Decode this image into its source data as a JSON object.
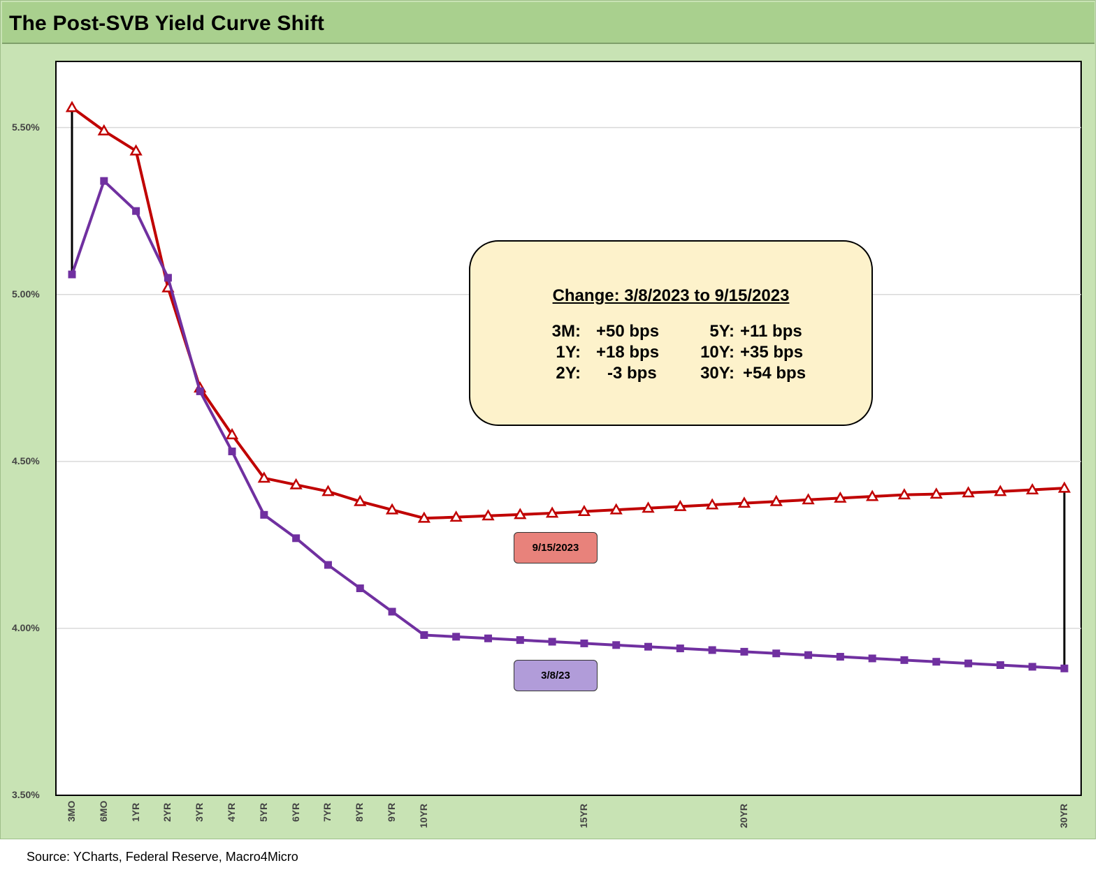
{
  "header": {
    "title": "The Post-SVB Yield Curve Shift"
  },
  "footer": {
    "source": "Source: YCharts, Federal Reserve, Macro4Micro"
  },
  "annotation": {
    "title": "Change: 3/8/2023 to 9/15/2023",
    "rows": [
      {
        "left_term": "3M:",
        "left_value": "+50 bps",
        "right_term": "5Y:",
        "right_value": "+11 bps"
      },
      {
        "left_term": "1Y:",
        "left_value": "+18 bps",
        "right_term": "10Y:",
        "right_value": "+35 bps"
      },
      {
        "left_term": "2Y:",
        "left_value": "-3 bps",
        "right_term": "30Y:",
        "right_value": "+54 bps"
      }
    ]
  },
  "colors": {
    "series_sep": "#c00000",
    "series_mar": "#7030a0",
    "label_sep_bg": "#e8827b",
    "label_mar_bg": "#b19cd9",
    "gridline": "#d9d9d9",
    "connector": "#000000"
  },
  "chart_data": {
    "type": "line",
    "title": "The Post-SVB Yield Curve Shift",
    "xlabel": "",
    "ylabel": "",
    "ylim": [
      3.5,
      5.7
    ],
    "yticks": [
      3.5,
      4.0,
      4.5,
      5.0,
      5.5
    ],
    "ytick_labels": [
      "3.50%",
      "4.00%",
      "4.50%",
      "5.00%",
      "5.50%"
    ],
    "x": [
      0.25,
      0.5,
      1,
      2,
      3,
      4,
      5,
      6,
      7,
      8,
      9,
      10,
      11,
      12,
      13,
      14,
      15,
      16,
      17,
      18,
      19,
      20,
      21,
      22,
      23,
      24,
      25,
      26,
      27,
      28,
      29,
      30
    ],
    "x_tick_labels": [
      "3MO",
      "6MO",
      "1YR",
      "2YR",
      "3YR",
      "4YR",
      "5YR",
      "6YR",
      "7YR",
      "8YR",
      "9YR",
      "10YR",
      "",
      "",
      "",
      "",
      "15YR",
      "",
      "",
      "",
      "",
      "20YR",
      "",
      "",
      "",
      "",
      "",
      "",
      "",
      "",
      "",
      "30YR"
    ],
    "grid": true,
    "legend": "none",
    "series": [
      {
        "name": "9/15/2023",
        "marker": "triangle",
        "values": [
          5.56,
          5.49,
          5.43,
          5.02,
          4.72,
          4.58,
          4.45,
          4.43,
          4.41,
          4.38,
          4.355,
          4.33,
          4.333,
          4.337,
          4.341,
          4.345,
          4.35,
          4.355,
          4.36,
          4.365,
          4.37,
          4.375,
          4.38,
          4.385,
          4.39,
          4.395,
          4.4,
          4.402,
          4.406,
          4.41,
          4.415,
          4.42
        ]
      },
      {
        "name": "3/8/23",
        "marker": "square",
        "values": [
          5.06,
          5.34,
          5.25,
          5.05,
          4.71,
          4.53,
          4.34,
          4.27,
          4.19,
          4.12,
          4.05,
          3.98,
          3.975,
          3.97,
          3.965,
          3.96,
          3.955,
          3.95,
          3.945,
          3.94,
          3.935,
          3.93,
          3.925,
          3.92,
          3.915,
          3.91,
          3.905,
          3.9,
          3.895,
          3.89,
          3.885,
          3.88
        ]
      }
    ],
    "connectors": [
      {
        "x": 0.25,
        "from": 5.06,
        "to": 5.56
      },
      {
        "x": 30,
        "from": 3.88,
        "to": 4.42
      }
    ]
  }
}
